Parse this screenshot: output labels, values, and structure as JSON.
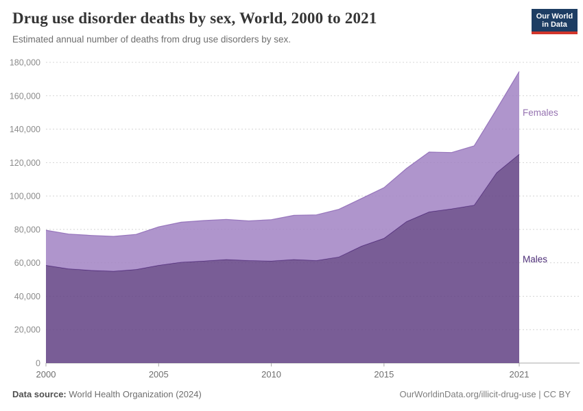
{
  "header": {
    "title": "Drug use disorder deaths by sex, World, 2000 to 2021",
    "subtitle": "Estimated annual number of deaths from drug use disorders by sex."
  },
  "logo": {
    "line1": "Our World",
    "line2": "in Data",
    "bg_color": "#1d3d63",
    "accent_color": "#d2352b"
  },
  "footer": {
    "source_label": "Data source:",
    "source_value": " World Health Organization (2024)",
    "right_text": "OurWorldinData.org/illicit-drug-use | CC BY"
  },
  "chart_data": {
    "type": "area",
    "stacked": true,
    "title": "Drug use disorder deaths by sex, World, 2000 to 2021",
    "xlabel": "",
    "ylabel": "",
    "x": [
      2000,
      2001,
      2002,
      2003,
      2004,
      2005,
      2006,
      2007,
      2008,
      2009,
      2010,
      2011,
      2012,
      2013,
      2014,
      2015,
      2016,
      2017,
      2018,
      2019,
      2020,
      2021
    ],
    "series": [
      {
        "name": "Males",
        "fill_color": "#614184",
        "line_color": "#45206f",
        "label_color": "#4c2d77",
        "values": [
          58500,
          56400,
          55500,
          55000,
          56000,
          58500,
          60400,
          61100,
          62000,
          61400,
          61100,
          62000,
          61400,
          63500,
          70000,
          74700,
          84700,
          90500,
          92300,
          94500,
          114000,
          125000
        ]
      },
      {
        "name": "Females",
        "fill_color": "#a183c3",
        "line_color": "#906db8",
        "label_color": "#9673b1",
        "values": [
          21000,
          20800,
          20900,
          20800,
          21000,
          23000,
          23900,
          24200,
          24000,
          23700,
          24700,
          26400,
          27300,
          28500,
          28500,
          30300,
          31800,
          35800,
          33700,
          35500,
          38000,
          49500
        ]
      }
    ],
    "stacked_totals": [
      79500,
      77200,
      76400,
      75800,
      77000,
      81500,
      84300,
      85300,
      86000,
      85100,
      85800,
      88400,
      88700,
      92000,
      98500,
      105000,
      116500,
      126300,
      126000,
      130000,
      152000,
      174500
    ],
    "xlim": [
      2000,
      2021
    ],
    "ylim": [
      0,
      180000
    ],
    "x_ticks": [
      {
        "year": 2000,
        "label": "2000"
      },
      {
        "year": 2005,
        "label": "2005"
      },
      {
        "year": 2010,
        "label": "2010"
      },
      {
        "year": 2015,
        "label": "2015"
      },
      {
        "year": 2021,
        "label": "2021"
      }
    ],
    "y_ticks": [
      {
        "value": 0,
        "label": "0"
      },
      {
        "value": 20000,
        "label": "20,000"
      },
      {
        "value": 40000,
        "label": "40,000"
      },
      {
        "value": 60000,
        "label": "60,000"
      },
      {
        "value": 80000,
        "label": "80,000"
      },
      {
        "value": 100000,
        "label": "100,000"
      },
      {
        "value": 120000,
        "label": "120,000"
      },
      {
        "value": 140000,
        "label": "140,000"
      },
      {
        "value": 160000,
        "label": "160,000"
      },
      {
        "value": 180000,
        "label": "180,000"
      }
    ],
    "grid": "horizontal dashed",
    "gridline_color": "#d4d4d4",
    "axis_text_color": "#8b8b8b",
    "legend_position": "labels at right edge of plot"
  }
}
